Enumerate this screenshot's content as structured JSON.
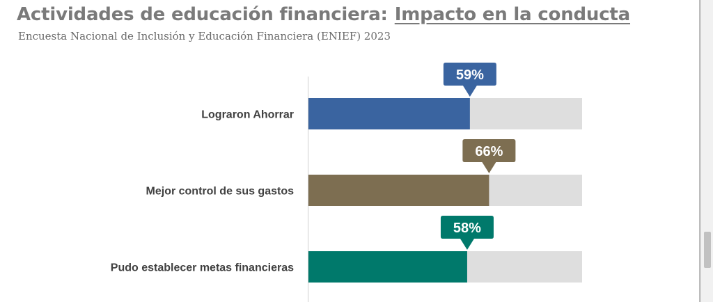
{
  "header": {
    "title_main": "Actividades de educación financiera:",
    "title_underlined": "Impacto en la conducta",
    "subtitle": "Encuesta Nacional de Inclusión y Educación Financiera (ENIEF) 2023"
  },
  "chart_data": {
    "type": "bar",
    "orientation": "horizontal",
    "categories": [
      "Lograron Ahorrar",
      "Mejor control de sus gastos",
      "Pudo establecer metas financieras"
    ],
    "values": [
      59,
      66,
      58
    ],
    "value_labels": [
      "59%",
      "66%",
      "58%"
    ],
    "xlim": [
      0,
      100
    ],
    "unit": "%",
    "background_bar": true,
    "colors": [
      "#3a64a0",
      "#7d6e51",
      "#00796b"
    ],
    "background_color": "#dedede",
    "grid": false,
    "legend": "none"
  }
}
